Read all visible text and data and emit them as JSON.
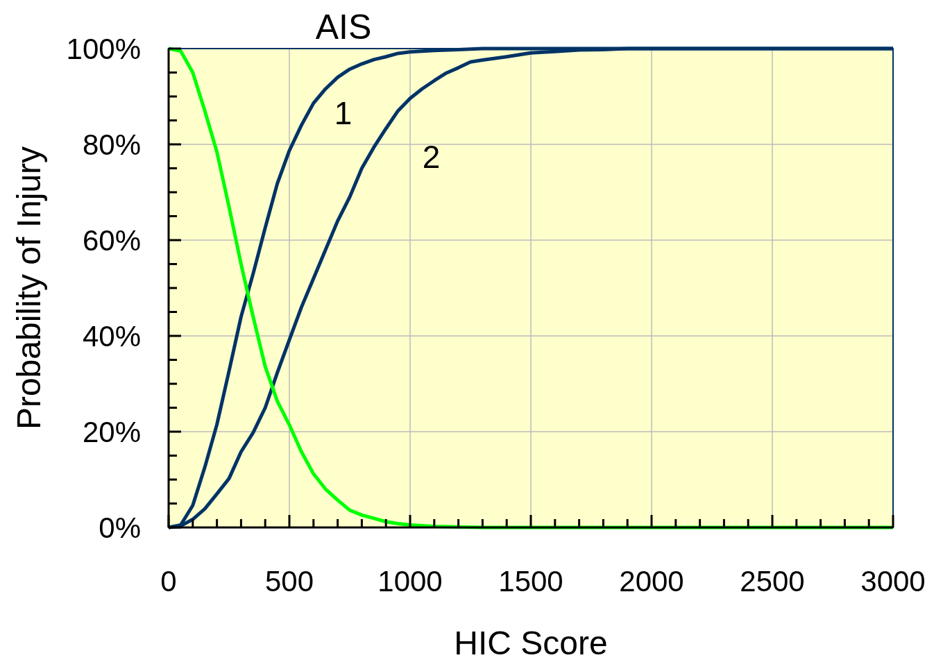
{
  "chart_data": {
    "type": "line",
    "title": "AIS",
    "xlabel": "HIC Score",
    "ylabel": "Probability of Injury",
    "xlim": [
      0,
      3000
    ],
    "ylim": [
      0,
      100
    ],
    "xticks": [
      0,
      {
        "value": 100,
        "label": null
      },
      {
        "value": 200,
        "label": null
      },
      {
        "value": 300,
        "label": null
      },
      {
        "value": 400,
        "label": null
      },
      500,
      {
        "value": 600,
        "label": null
      },
      {
        "value": 700,
        "label": null
      },
      {
        "value": 800,
        "label": null
      },
      {
        "value": 900,
        "label": null
      },
      1000,
      {
        "value": 1100,
        "label": null
      },
      {
        "value": 1200,
        "label": null
      },
      {
        "value": 1300,
        "label": null
      },
      {
        "value": 1400,
        "label": null
      },
      1500,
      {
        "value": 1600,
        "label": null
      },
      {
        "value": 1700,
        "label": null
      },
      {
        "value": 1800,
        "label": null
      },
      {
        "value": 1900,
        "label": null
      },
      2000,
      {
        "value": 2100,
        "label": null
      },
      {
        "value": 2200,
        "label": null
      },
      {
        "value": 2300,
        "label": null
      },
      {
        "value": 2400,
        "label": null
      },
      2500,
      {
        "value": 2600,
        "label": null
      },
      {
        "value": 2700,
        "label": null
      },
      {
        "value": 2800,
        "label": null
      },
      {
        "value": 2900,
        "label": null
      },
      3000
    ],
    "yticks": [
      {
        "value": 0,
        "label": "0%"
      },
      {
        "value": 5,
        "label": null
      },
      {
        "value": 10,
        "label": null
      },
      {
        "value": 15,
        "label": null
      },
      {
        "value": 20,
        "label": "20%"
      },
      {
        "value": 25,
        "label": null
      },
      {
        "value": 30,
        "label": null
      },
      {
        "value": 35,
        "label": null
      },
      {
        "value": 40,
        "label": "40%"
      },
      {
        "value": 45,
        "label": null
      },
      {
        "value": 50,
        "label": null
      },
      {
        "value": 55,
        "label": null
      },
      {
        "value": 60,
        "label": "60%"
      },
      {
        "value": 65,
        "label": null
      },
      {
        "value": 70,
        "label": null
      },
      {
        "value": 75,
        "label": null
      },
      {
        "value": 80,
        "label": "80%"
      },
      {
        "value": 85,
        "label": null
      },
      {
        "value": 90,
        "label": null
      },
      {
        "value": 95,
        "label": null
      },
      {
        "value": 100,
        "label": "100%"
      }
    ],
    "grid": true,
    "marker": "none",
    "line_style": "solid",
    "series": [
      {
        "name": "1",
        "color": "#003366",
        "x": [
          0,
          50,
          100,
          150,
          200,
          250,
          300,
          350,
          400,
          450,
          500,
          550,
          600,
          650,
          700,
          750,
          800,
          850,
          900,
          950,
          1000,
          1100,
          1200,
          1300,
          3000
        ],
        "values": [
          0,
          0.5,
          4.6,
          12.6,
          21.5,
          32.6,
          44,
          53,
          62.6,
          71.8,
          78.7,
          84,
          88.6,
          91.6,
          94,
          95.7,
          96.8,
          97.7,
          98.3,
          99,
          99.3,
          99.6,
          99.8,
          100,
          100
        ]
      },
      {
        "name": "2",
        "color": "#003366",
        "x": [
          0,
          50,
          100,
          150,
          200,
          250,
          300,
          350,
          400,
          450,
          500,
          550,
          600,
          650,
          700,
          750,
          800,
          850,
          900,
          950,
          1000,
          1050,
          1100,
          1150,
          1200,
          1250,
          1300,
          1400,
          1500,
          1600,
          1700,
          1800,
          1900,
          3000
        ],
        "values": [
          0,
          0.3,
          1.7,
          3.9,
          7,
          10.2,
          15.8,
          19.8,
          25,
          32.3,
          39.2,
          46,
          52,
          58,
          64,
          69,
          75,
          79.4,
          83.3,
          87,
          89.6,
          91.6,
          93.3,
          94.9,
          96,
          97.2,
          97.6,
          98.3,
          99.1,
          99.4,
          99.7,
          99.8,
          100,
          100
        ]
      },
      {
        "color": "#00ff00",
        "x": [
          0,
          50,
          100,
          150,
          200,
          250,
          300,
          350,
          400,
          450,
          500,
          550,
          600,
          650,
          700,
          750,
          800,
          850,
          900,
          950,
          1000,
          1100,
          1200,
          1300,
          3000
        ],
        "values": [
          100,
          99.5,
          95,
          87,
          78.4,
          67,
          55,
          44,
          33.6,
          26.4,
          21.4,
          15.8,
          11.2,
          8,
          5.7,
          3.6,
          2.6,
          1.9,
          1.2,
          0.8,
          0.5,
          0.2,
          0.1,
          0,
          0
        ]
      }
    ]
  }
}
